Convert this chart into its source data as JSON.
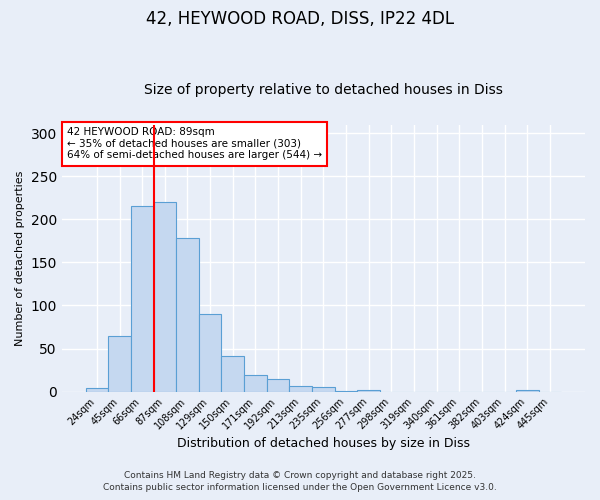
{
  "title1": "42, HEYWOOD ROAD, DISS, IP22 4DL",
  "title2": "Size of property relative to detached houses in Diss",
  "xlabel": "Distribution of detached houses by size in Diss",
  "ylabel": "Number of detached properties",
  "categories": [
    "24sqm",
    "45sqm",
    "66sqm",
    "87sqm",
    "108sqm",
    "129sqm",
    "150sqm",
    "171sqm",
    "192sqm",
    "213sqm",
    "235sqm",
    "256sqm",
    "277sqm",
    "298sqm",
    "319sqm",
    "340sqm",
    "361sqm",
    "382sqm",
    "403sqm",
    "424sqm",
    "445sqm"
  ],
  "values": [
    4,
    64,
    215,
    220,
    178,
    90,
    41,
    19,
    15,
    6,
    5,
    1,
    2,
    0,
    0,
    0,
    0,
    0,
    0,
    2,
    0
  ],
  "bar_color": "#c5d8f0",
  "bar_edge_color": "#5a9fd4",
  "ref_line_index": 3,
  "ref_line_color": "red",
  "annotation_text": "42 HEYWOOD ROAD: 89sqm\n← 35% of detached houses are smaller (303)\n64% of semi-detached houses are larger (544) →",
  "annotation_box_color": "white",
  "annotation_box_edge": "red",
  "ylim": [
    0,
    310
  ],
  "yticks": [
    0,
    50,
    100,
    150,
    200,
    250,
    300
  ],
  "footer1": "Contains HM Land Registry data © Crown copyright and database right 2025.",
  "footer2": "Contains public sector information licensed under the Open Government Licence v3.0.",
  "background_color": "#e8eef8",
  "grid_color": "#ffffff",
  "title_fontsize1": 12,
  "title_fontsize2": 10,
  "ylabel_fontsize": 8,
  "xlabel_fontsize": 9,
  "tick_fontsize": 7,
  "footer_fontsize": 6.5
}
